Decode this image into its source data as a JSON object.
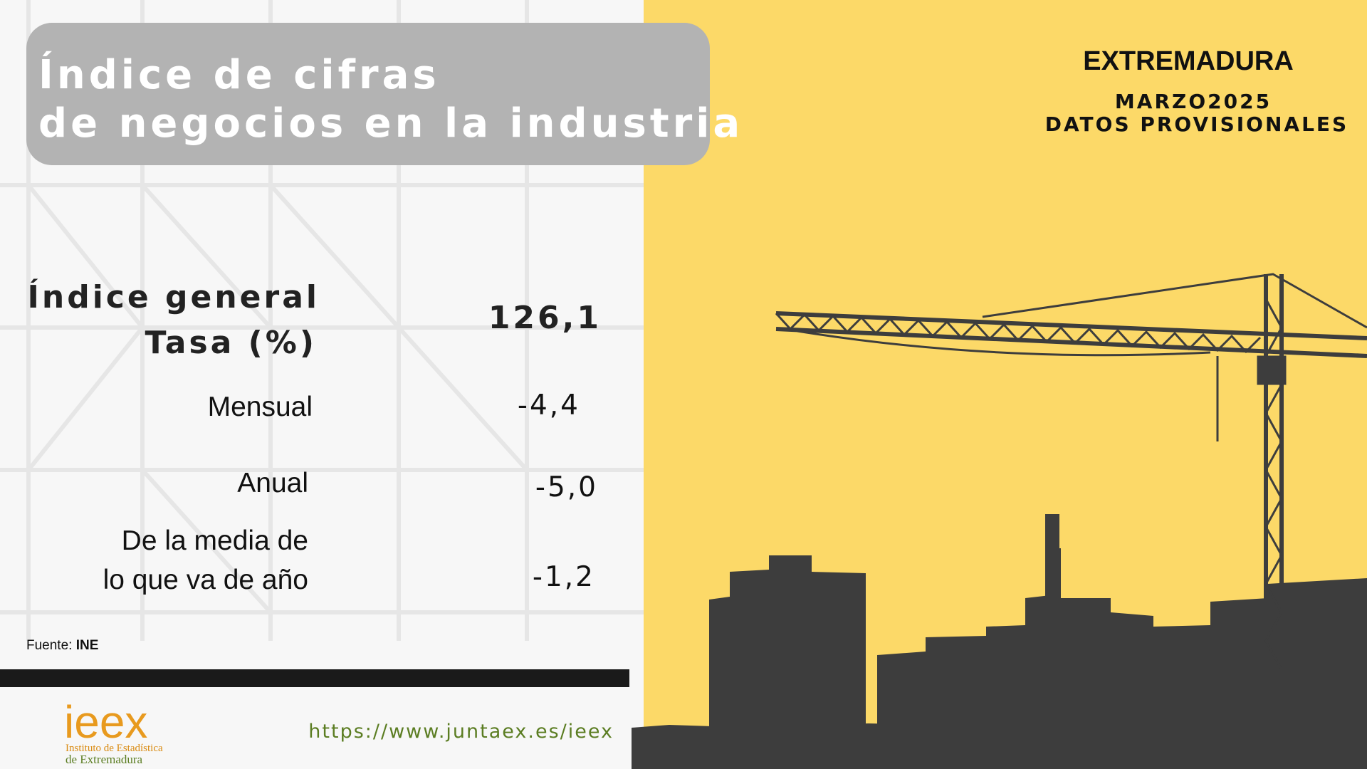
{
  "header": {
    "title_line1": "Índice de cifras",
    "title_line2": "de negocios en la industria",
    "region": "EXTREMADURA",
    "period": "MARZO2025",
    "status": "DATOS PROVISIONALES"
  },
  "indicators": {
    "general": {
      "label": "Índice general",
      "value": "126,1"
    },
    "rate_heading": "Tasa (%)",
    "rows": [
      {
        "label": "Mensual",
        "value": "-4,4"
      },
      {
        "label": "Anual",
        "value": "-5,0"
      },
      {
        "label_line1": "De la media de",
        "label_line2": "lo que va de año",
        "value": "-1,2"
      }
    ]
  },
  "footer": {
    "source_label": "Fuente:",
    "source": "INE",
    "logo": "ieex",
    "logo_line1": "Instituto de Estadística",
    "logo_line2": "de Extremadura",
    "url": "https://www.juntaex.es/ieex"
  }
}
